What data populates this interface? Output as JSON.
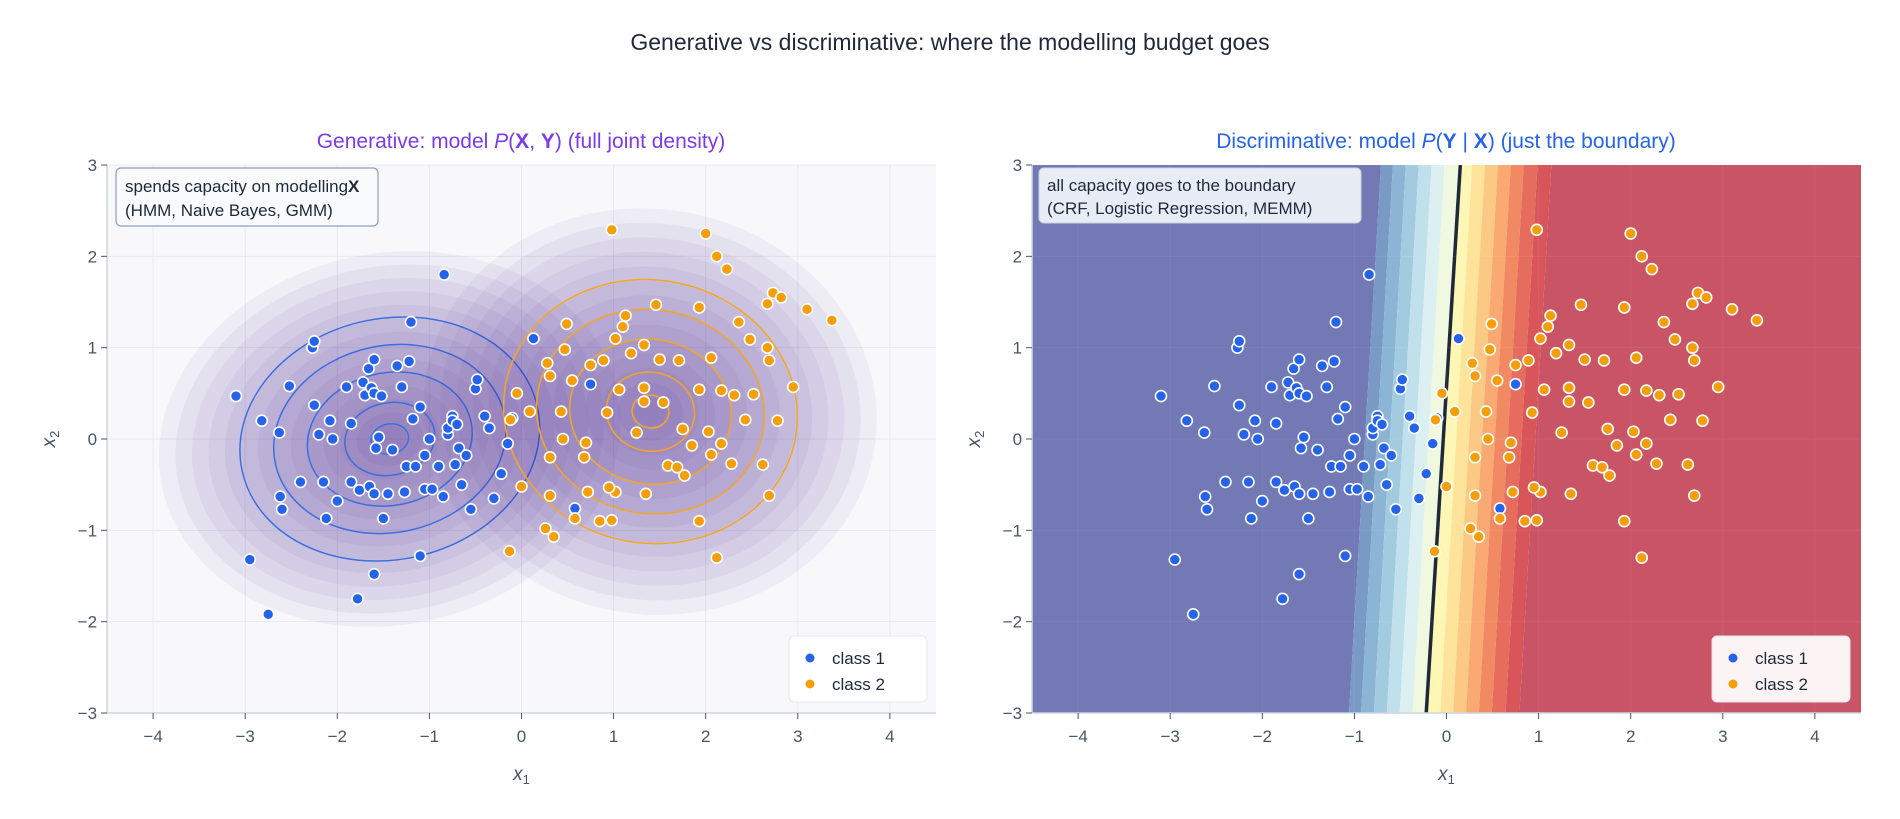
{
  "suptitle": "Generative vs discriminative: where the modelling budget goes",
  "colors": {
    "class1": "#2563eb",
    "class2": "#f59e0b",
    "gen_title": "#7c3aed",
    "disc_title": "#2563eb",
    "density": "#4c2a9a",
    "boundary": "#1e293b"
  },
  "chart_data": [
    {
      "type": "scatter",
      "panel": "generative",
      "title_parts": [
        "Generative: model ",
        "P",
        "(",
        "X",
        ", ",
        "Y",
        ") (full joint density)"
      ],
      "annotation": {
        "line1": "spends capacity on modelling",
        "line1_bold": "X",
        "line2": "(HMM, Naive Bayes, GMM)"
      },
      "xlabel": "x1",
      "ylabel": "x2",
      "xlim": [
        -4.5,
        4.5
      ],
      "ylim": [
        -3,
        3
      ],
      "xticks": [
        "−4",
        "−3",
        "−2",
        "−1",
        "0",
        "1",
        "2",
        "3",
        "4"
      ],
      "yticks": [
        "−3",
        "−2",
        "−1",
        "0",
        "1",
        "2",
        "3"
      ],
      "grid": true,
      "legend": {
        "position": "bottom-right",
        "entries": [
          "class 1",
          "class 2"
        ]
      },
      "overlays": "filled joint density contours with per-class Gaussian contour lines",
      "class_gaussians": [
        {
          "class": "class 1",
          "mean": [
            -1.43,
            0.0
          ],
          "sd": [
            0.82,
            0.66
          ],
          "angle_deg": 12
        },
        {
          "class": "class 2",
          "mean": [
            1.4,
            0.3
          ],
          "sd": [
            0.8,
            0.72
          ],
          "angle_deg": -10
        }
      ]
    },
    {
      "type": "scatter",
      "panel": "discriminative",
      "title_parts": [
        "Discriminative: model ",
        "P",
        "(",
        "Y",
        " | ",
        "X",
        ") (just the boundary)"
      ],
      "annotation": {
        "line1": "all capacity goes to the boundary",
        "line2": "(CRF, Logistic Regression, MEMM)"
      },
      "xlabel": "x1",
      "ylabel": "x2",
      "xlim": [
        -4.5,
        4.5
      ],
      "ylim": [
        -3,
        3
      ],
      "xticks": [
        "−4",
        "−3",
        "−2",
        "−1",
        "0",
        "1",
        "2",
        "3",
        "4"
      ],
      "yticks": [
        "−3",
        "−2",
        "−1",
        "0",
        "1",
        "2",
        "3"
      ],
      "grid": true,
      "legend": {
        "position": "bottom-right",
        "entries": [
          "class 1",
          "class 2"
        ]
      },
      "decision_boundary": {
        "top": [
          0.15,
          3
        ],
        "bottom": [
          -0.22,
          -3
        ]
      },
      "colormap": "RdYlBu_r"
    }
  ],
  "series": {
    "class1": [
      [
        -3.1,
        0.47
      ],
      [
        -2.95,
        -1.32
      ],
      [
        -2.75,
        -1.92
      ],
      [
        -2.82,
        0.2
      ],
      [
        -2.62,
        -0.63
      ],
      [
        -2.6,
        -0.77
      ],
      [
        -2.63,
        0.07
      ],
      [
        -2.52,
        0.58
      ],
      [
        -2.4,
        -0.47
      ],
      [
        -2.27,
        1.0
      ],
      [
        -2.25,
        1.07
      ],
      [
        -2.25,
        0.37
      ],
      [
        -2.2,
        0.05
      ],
      [
        -2.15,
        -0.47
      ],
      [
        -2.12,
        -0.87
      ],
      [
        -2.08,
        0.2
      ],
      [
        -2.0,
        -0.68
      ],
      [
        -2.05,
        0.0
      ],
      [
        -1.9,
        0.57
      ],
      [
        -1.85,
        -0.47
      ],
      [
        -1.85,
        0.17
      ],
      [
        -1.78,
        -1.75
      ],
      [
        -1.76,
        -0.56
      ],
      [
        -1.72,
        0.62
      ],
      [
        -1.7,
        0.48
      ],
      [
        -1.66,
        0.77
      ],
      [
        -1.63,
        0.56
      ],
      [
        -1.6,
        0.87
      ],
      [
        -1.6,
        0.5
      ],
      [
        -1.6,
        -1.48
      ],
      [
        -1.58,
        -0.1
      ],
      [
        -1.55,
        0.02
      ],
      [
        -1.65,
        -0.52
      ],
      [
        -1.6,
        -0.6
      ],
      [
        -1.52,
        0.47
      ],
      [
        -1.5,
        -0.87
      ],
      [
        -1.45,
        -0.6
      ],
      [
        -1.4,
        -0.12
      ],
      [
        -1.35,
        0.8
      ],
      [
        -1.3,
        0.57
      ],
      [
        -1.27,
        -0.58
      ],
      [
        -1.25,
        -0.3
      ],
      [
        -1.22,
        0.85
      ],
      [
        -1.2,
        1.28
      ],
      [
        -1.18,
        0.22
      ],
      [
        -1.15,
        -0.3
      ],
      [
        -1.1,
        -1.28
      ],
      [
        -1.1,
        0.35
      ],
      [
        -1.05,
        -0.55
      ],
      [
        -1.0,
        0.0
      ],
      [
        -1.05,
        -0.18
      ],
      [
        -0.97,
        -0.55
      ],
      [
        -0.9,
        -0.3
      ],
      [
        -0.85,
        -0.63
      ],
      [
        -0.84,
        1.8
      ],
      [
        -0.8,
        0.05
      ],
      [
        -0.8,
        0.12
      ],
      [
        -0.75,
        0.25
      ],
      [
        -0.75,
        0.2
      ],
      [
        -0.7,
        0.16
      ],
      [
        -0.68,
        -0.1
      ],
      [
        -0.65,
        -0.5
      ],
      [
        -0.72,
        -0.28
      ],
      [
        -0.6,
        -0.18
      ],
      [
        -0.55,
        -0.77
      ],
      [
        -0.5,
        0.55
      ],
      [
        -0.48,
        0.65
      ],
      [
        -0.4,
        0.25
      ],
      [
        -0.35,
        0.12
      ],
      [
        -0.3,
        -0.65
      ],
      [
        -0.22,
        -0.38
      ],
      [
        -0.15,
        -0.05
      ],
      [
        -0.1,
        0.23
      ],
      [
        0.13,
        1.1
      ],
      [
        0.58,
        -0.76
      ],
      [
        0.75,
        0.6
      ]
    ],
    "class2": [
      [
        0.98,
        2.29
      ],
      [
        2.0,
        2.25
      ],
      [
        2.12,
        2.0
      ],
      [
        2.23,
        1.86
      ],
      [
        2.73,
        1.6
      ],
      [
        2.82,
        1.55
      ],
      [
        3.1,
        1.42
      ],
      [
        3.37,
        1.3
      ],
      [
        2.67,
        1.48
      ],
      [
        2.36,
        1.28
      ],
      [
        1.93,
        1.44
      ],
      [
        1.46,
        1.47
      ],
      [
        1.13,
        1.35
      ],
      [
        1.1,
        1.23
      ],
      [
        0.49,
        1.26
      ],
      [
        1.33,
        1.03
      ],
      [
        1.02,
        1.1
      ],
      [
        1.19,
        0.94
      ],
      [
        0.47,
        0.98
      ],
      [
        0.28,
        0.83
      ],
      [
        0.75,
        0.81
      ],
      [
        0.89,
        0.86
      ],
      [
        1.5,
        0.87
      ],
      [
        1.71,
        0.86
      ],
      [
        2.06,
        0.89
      ],
      [
        2.69,
        0.86
      ],
      [
        2.67,
        1.0
      ],
      [
        2.48,
        1.09
      ],
      [
        0.55,
        0.64
      ],
      [
        0.31,
        0.69
      ],
      [
        1.06,
        0.54
      ],
      [
        1.33,
        0.56
      ],
      [
        1.54,
        0.4
      ],
      [
        1.93,
        0.54
      ],
      [
        2.17,
        0.53
      ],
      [
        2.95,
        0.57
      ],
      [
        2.31,
        0.48
      ],
      [
        2.52,
        0.49
      ],
      [
        0.43,
        0.3
      ],
      [
        0.93,
        0.29
      ],
      [
        1.33,
        0.41
      ],
      [
        0.45,
        0.0
      ],
      [
        0.7,
        -0.04
      ],
      [
        1.25,
        0.07
      ],
      [
        1.75,
        0.11
      ],
      [
        2.03,
        0.08
      ],
      [
        1.85,
        -0.07
      ],
      [
        1.59,
        -0.29
      ],
      [
        1.69,
        -0.31
      ],
      [
        2.06,
        -0.17
      ],
      [
        2.28,
        -0.27
      ],
      [
        2.62,
        -0.28
      ],
      [
        2.17,
        -0.05
      ],
      [
        2.43,
        0.21
      ],
      [
        2.78,
        0.2
      ],
      [
        0.31,
        -0.2
      ],
      [
        0.68,
        -0.2
      ],
      [
        0.72,
        -0.58
      ],
      [
        0.31,
        -0.62
      ],
      [
        0.58,
        -0.87
      ],
      [
        1.02,
        -0.58
      ],
      [
        0.95,
        -0.53
      ],
      [
        0.85,
        -0.9
      ],
      [
        0.98,
        -0.89
      ],
      [
        1.35,
        -0.6
      ],
      [
        1.77,
        -0.4
      ],
      [
        1.93,
        -0.9
      ],
      [
        2.69,
        -0.62
      ],
      [
        2.12,
        -1.3
      ],
      [
        0.26,
        -0.98
      ],
      [
        0.35,
        -1.07
      ],
      [
        -0.13,
        -1.23
      ],
      [
        0.0,
        -0.52
      ],
      [
        -0.12,
        0.21
      ],
      [
        -0.05,
        0.5
      ],
      [
        0.09,
        0.3
      ]
    ]
  }
}
